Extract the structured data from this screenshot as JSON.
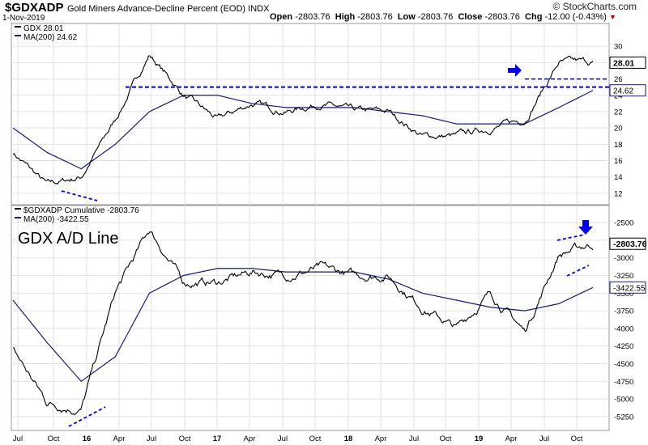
{
  "header": {
    "symbol": "$GDXADP",
    "name": "Gold Miners Advance-Decline Percent (EOD)  INDX",
    "date": "1-Nov-2019",
    "brand": "© StockCharts.com",
    "open_label": "Open",
    "open_value": "-2803.76",
    "high_label": "High",
    "high_value": "-2803.76",
    "low_label": "Low",
    "low_value": "-2803.76",
    "close_label": "Close",
    "close_value": "-2803.76",
    "chg_label": "Chg",
    "chg_value": "-12.00 (-0.43%)"
  },
  "annotation": "GDX A/D Line",
  "colors": {
    "price": "#000000",
    "ma": "#1a1a7a",
    "annotation": "#0000ee",
    "grid": "#e2e2e2"
  },
  "x_axis_labels": [
    "Jul",
    "Oct",
    "16",
    "Apr",
    "Jul",
    "Oct",
    "17",
    "Apr",
    "Jul",
    "Oct",
    "18",
    "Apr",
    "Jul",
    "Oct",
    "19",
    "Apr",
    "Jul",
    "Oct"
  ],
  "chart_data": [
    {
      "type": "line",
      "title": "GDX 28.01",
      "legend": [
        "GDX 28.01",
        "MA(200) 24.62"
      ],
      "last_value_label": "28.01",
      "ma_value_label": "24.62",
      "yticks": [
        12,
        14,
        16,
        18,
        20,
        22,
        24,
        26,
        28,
        30
      ],
      "ylim": [
        11,
        32
      ],
      "x": [
        "Jul 2015",
        "Oct 2015",
        "Jan 2016",
        "Apr 2016",
        "Jul 2016",
        "Oct 2016",
        "Jan 2017",
        "Apr 2017",
        "Jul 2017",
        "Oct 2017",
        "Jan 2018",
        "Apr 2018",
        "Jul 2018",
        "Oct 2018",
        "Jan 2019",
        "Apr 2019",
        "Jul 2019",
        "Oct 2019"
      ],
      "series": [
        {
          "name": "GDX",
          "values": [
            17,
            13,
            14,
            21,
            29,
            24,
            21,
            23,
            22,
            23,
            22,
            22,
            19,
            19,
            20,
            21,
            28,
            28
          ]
        },
        {
          "name": "MA(200)",
          "values": [
            20,
            17,
            15,
            18,
            22,
            24,
            24,
            23,
            22.5,
            22.5,
            22.5,
            22,
            21.5,
            20.5,
            20.5,
            20.5,
            22.5,
            24.6
          ]
        }
      ],
      "reference_levels": [
        25,
        26
      ]
    },
    {
      "type": "line",
      "title": "$GDXADP Cumulative -2803.76",
      "legend": [
        "$GDXADP Cumulative -2803.76",
        "MA(200) -3422.55"
      ],
      "last_value_label": "-2803.76",
      "ma_value_label": "-3422.55",
      "yticks": [
        -5250,
        -5000,
        -4750,
        -4500,
        -4250,
        -4000,
        -3750,
        -3500,
        -3250,
        -3000,
        -2750,
        -2500
      ],
      "ylim": [
        -5400,
        -2350
      ],
      "x": [
        "Jul 2015",
        "Oct 2015",
        "Jan 2016",
        "Apr 2016",
        "Jul 2016",
        "Oct 2016",
        "Jan 2017",
        "Apr 2017",
        "Jul 2017",
        "Oct 2017",
        "Jan 2018",
        "Apr 2018",
        "Jul 2018",
        "Oct 2018",
        "Jan 2019",
        "Apr 2019",
        "Jul 2019",
        "Oct 2019"
      ],
      "series": [
        {
          "name": "$GDXADP Cumulative",
          "values": [
            -4300,
            -5050,
            -5150,
            -3500,
            -2600,
            -3350,
            -3350,
            -3200,
            -3250,
            -3150,
            -3250,
            -3250,
            -3700,
            -4000,
            -3500,
            -4050,
            -2950,
            -2800
          ]
        },
        {
          "name": "MA(200)",
          "values": [
            -3600,
            -4200,
            -4750,
            -4400,
            -3500,
            -3250,
            -3150,
            -3150,
            -3200,
            -3200,
            -3200,
            -3300,
            -3500,
            -3600,
            -3700,
            -3750,
            -3650,
            -3420
          ]
        }
      ]
    }
  ]
}
